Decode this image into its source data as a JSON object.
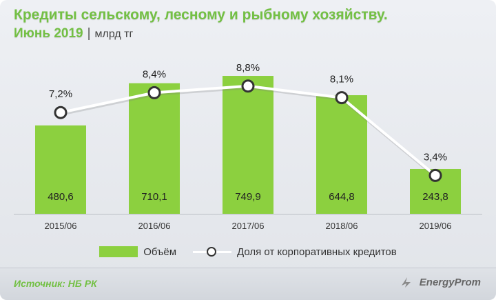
{
  "header": {
    "title": "Кредиты сельскому, лесному и рыбному хозяйству.",
    "period": "Июнь 2019",
    "separator": "|",
    "unit": "млрд тг"
  },
  "chart_data": {
    "type": "bar",
    "categories": [
      "2015/06",
      "2016/06",
      "2017/06",
      "2018/06",
      "2019/06"
    ],
    "series": [
      {
        "name": "Объём",
        "type": "bar",
        "values": [
          480.6,
          710.1,
          749.9,
          644.8,
          243.8
        ],
        "labels": [
          "480,6",
          "710,1",
          "749,9",
          "644,8",
          "243,8"
        ]
      },
      {
        "name": "Доля от корпоративных кредитов",
        "type": "line",
        "values": [
          7.2,
          8.4,
          8.8,
          8.1,
          3.4
        ],
        "labels": [
          "7,2%",
          "8,4%",
          "8,8%",
          "8,1%",
          "3,4%"
        ]
      }
    ],
    "grid": false,
    "legend": "bottom",
    "colors": {
      "bar": "#8cd03f",
      "line": "#ffffff",
      "marker_stroke": "#333333",
      "accent": "#73c044"
    }
  },
  "legend": {
    "bar_label": "Объём",
    "line_label": "Доля от корпоративных кредитов"
  },
  "footer": {
    "source": "Источник: НБ РК",
    "logo": "EnergyProm"
  }
}
